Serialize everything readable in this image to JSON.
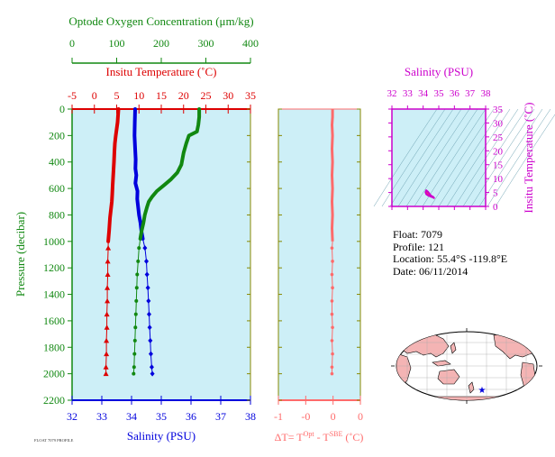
{
  "colors": {
    "temperature": "#dd0000",
    "oxygen": "#118811",
    "salinity": "#0000dd",
    "delta_t": "#ff6b6b",
    "ts_plot": "#cc00cc",
    "panel_bg": "#cdeff7",
    "frame": "#888800"
  },
  "info": {
    "float": "Float:  7079",
    "profile": "Profile:  121",
    "location": "Location:  55.4°S  -119.8°E",
    "date": "Date:  06/11/2014"
  },
  "footer_tiny": "FLOAT 7079 PROFILE",
  "chart_data": [
    {
      "type": "line",
      "id": "main-profile",
      "ylabel": "Pressure (decibar)",
      "y_ticks": [
        0,
        200,
        400,
        600,
        800,
        1000,
        1200,
        1400,
        1600,
        1800,
        2000,
        2200
      ],
      "y_range": [
        0,
        2200
      ],
      "y_inverted": true,
      "axes": {
        "oxygen": {
          "title": "Optode Oxygen Concentration (μm/kg)",
          "range": [
            0,
            400
          ],
          "ticks": [
            0,
            100,
            200,
            300,
            400
          ]
        },
        "temperature": {
          "title": "Insitu Temperature (˚C)",
          "range": [
            -5,
            35
          ],
          "ticks": [
            -5,
            0,
            5,
            10,
            15,
            20,
            25,
            30,
            35
          ]
        },
        "salinity": {
          "title": "Salinity (PSU)",
          "range": [
            32,
            38
          ],
          "ticks": [
            32,
            33,
            34,
            35,
            36,
            37,
            38
          ]
        }
      },
      "series": [
        {
          "name": "Insitu Temperature",
          "axis": "temperature",
          "points": [
            [
              5.4,
              0
            ],
            [
              5.3,
              50
            ],
            [
              5.2,
              100
            ],
            [
              5.0,
              150
            ],
            [
              4.8,
              200
            ],
            [
              4.6,
              260
            ],
            [
              4.5,
              320
            ],
            [
              4.4,
              400
            ],
            [
              4.3,
              460
            ],
            [
              4.2,
              520
            ],
            [
              4.1,
              580
            ],
            [
              4.0,
              640
            ],
            [
              3.9,
              700
            ],
            [
              3.7,
              760
            ],
            [
              3.5,
              820
            ],
            [
              3.4,
              870
            ],
            [
              3.3,
              920
            ],
            [
              3.2,
              960
            ],
            [
              3.1,
              1000
            ]
          ],
          "deep_points": [
            [
              3.1,
              1050
            ],
            [
              3.0,
              1150
            ],
            [
              3.0,
              1250
            ],
            [
              2.9,
              1350
            ],
            [
              2.9,
              1450
            ],
            [
              2.8,
              1550
            ],
            [
              2.8,
              1650
            ],
            [
              2.7,
              1750
            ],
            [
              2.7,
              1850
            ],
            [
              2.6,
              1950
            ],
            [
              2.6,
              2000
            ]
          ]
        },
        {
          "name": "Salinity",
          "axis": "salinity",
          "points": [
            [
              34.12,
              0
            ],
            [
              34.11,
              100
            ],
            [
              34.1,
              200
            ],
            [
              34.12,
              300
            ],
            [
              34.14,
              380
            ],
            [
              34.13,
              450
            ],
            [
              34.16,
              500
            ],
            [
              34.13,
              560
            ],
            [
              34.2,
              620
            ],
            [
              34.19,
              680
            ],
            [
              34.22,
              740
            ],
            [
              34.25,
              800
            ],
            [
              34.3,
              860
            ],
            [
              34.33,
              920
            ],
            [
              34.38,
              980
            ]
          ],
          "deep_points": [
            [
              34.45,
              1050
            ],
            [
              34.5,
              1150
            ],
            [
              34.52,
              1250
            ],
            [
              34.55,
              1350
            ],
            [
              34.57,
              1450
            ],
            [
              34.59,
              1550
            ],
            [
              34.61,
              1650
            ],
            [
              34.63,
              1750
            ],
            [
              34.65,
              1850
            ],
            [
              34.68,
              1950
            ],
            [
              34.7,
              2000
            ]
          ]
        },
        {
          "name": "Optode Oxygen Concentration",
          "axis": "oxygen",
          "points": [
            [
              285,
              0
            ],
            [
              285,
              60
            ],
            [
              283,
              120
            ],
            [
              280,
              170
            ],
            [
              262,
              200
            ],
            [
              256,
              260
            ],
            [
              250,
              330
            ],
            [
              245,
              420
            ],
            [
              236,
              480
            ],
            [
              222,
              530
            ],
            [
              208,
              570
            ],
            [
              190,
              620
            ],
            [
              180,
              660
            ],
            [
              172,
              700
            ],
            [
              168,
              740
            ],
            [
              163,
              800
            ],
            [
              160,
              860
            ],
            [
              156,
              920
            ],
            [
              153,
              980
            ]
          ],
          "deep_points": [
            [
              150,
              1050
            ],
            [
              148,
              1150
            ],
            [
              146,
              1250
            ],
            [
              145,
              1350
            ],
            [
              144,
              1450
            ],
            [
              143,
              1550
            ],
            [
              142,
              1650
            ],
            [
              141,
              1750
            ],
            [
              140,
              1850
            ],
            [
              139,
              1950
            ],
            [
              138,
              2000
            ]
          ]
        }
      ]
    },
    {
      "type": "line",
      "id": "delta-t",
      "xlabel": "ΔT= T",
      "xlabel_sup1": "Opt",
      "xlabel_mid": " - T",
      "xlabel_sup2": "SBE",
      "xlabel_tail": " (˚C)",
      "x_range": [
        -1.0,
        0.5
      ],
      "x_ticks": [
        -1.0,
        -0.5,
        0.0,
        0.5
      ],
      "x_tick_labels": [
        "-1",
        "-0",
        "0",
        "0"
      ],
      "series": [
        {
          "name": "ΔT",
          "points": [
            [
              -0.01,
              0
            ],
            [
              -0.01,
              60
            ],
            [
              -0.02,
              120
            ],
            [
              -0.01,
              200
            ],
            [
              -0.02,
              300
            ],
            [
              -0.01,
              400
            ],
            [
              -0.02,
              500
            ],
            [
              -0.01,
              600
            ],
            [
              -0.02,
              700
            ],
            [
              -0.01,
              800
            ],
            [
              -0.02,
              900
            ],
            [
              -0.01,
              1000
            ]
          ],
          "deep_points": [
            [
              -0.02,
              1050
            ],
            [
              -0.01,
              1150
            ],
            [
              -0.02,
              1250
            ],
            [
              -0.01,
              1350
            ],
            [
              -0.02,
              1450
            ],
            [
              -0.02,
              1550
            ],
            [
              -0.01,
              1650
            ],
            [
              -0.02,
              1750
            ],
            [
              -0.01,
              1850
            ],
            [
              -0.02,
              1950
            ],
            [
              -0.02,
              2000
            ]
          ]
        }
      ]
    },
    {
      "type": "scatter",
      "id": "ts-diagram",
      "title": "Salinity (PSU)",
      "ylabel": "Insitu Temperature (˚C)",
      "x_range": [
        32,
        38
      ],
      "x_ticks": [
        32,
        33,
        34,
        35,
        36,
        37,
        38
      ],
      "y_range": [
        0,
        35
      ],
      "y_ticks": [
        0,
        5,
        10,
        15,
        20,
        25,
        30,
        35
      ],
      "points": [
        [
          34.3,
          5.3
        ],
        [
          34.2,
          5.8
        ],
        [
          34.15,
          5.1
        ],
        [
          34.2,
          4.4
        ],
        [
          34.3,
          4.0
        ],
        [
          34.45,
          3.6
        ],
        [
          34.6,
          3.3
        ],
        [
          34.7,
          3.0
        ],
        [
          34.65,
          3.4
        ],
        [
          34.5,
          3.9
        ],
        [
          34.4,
          4.6
        ]
      ]
    }
  ],
  "map": {
    "marker": "float-position-star"
  }
}
